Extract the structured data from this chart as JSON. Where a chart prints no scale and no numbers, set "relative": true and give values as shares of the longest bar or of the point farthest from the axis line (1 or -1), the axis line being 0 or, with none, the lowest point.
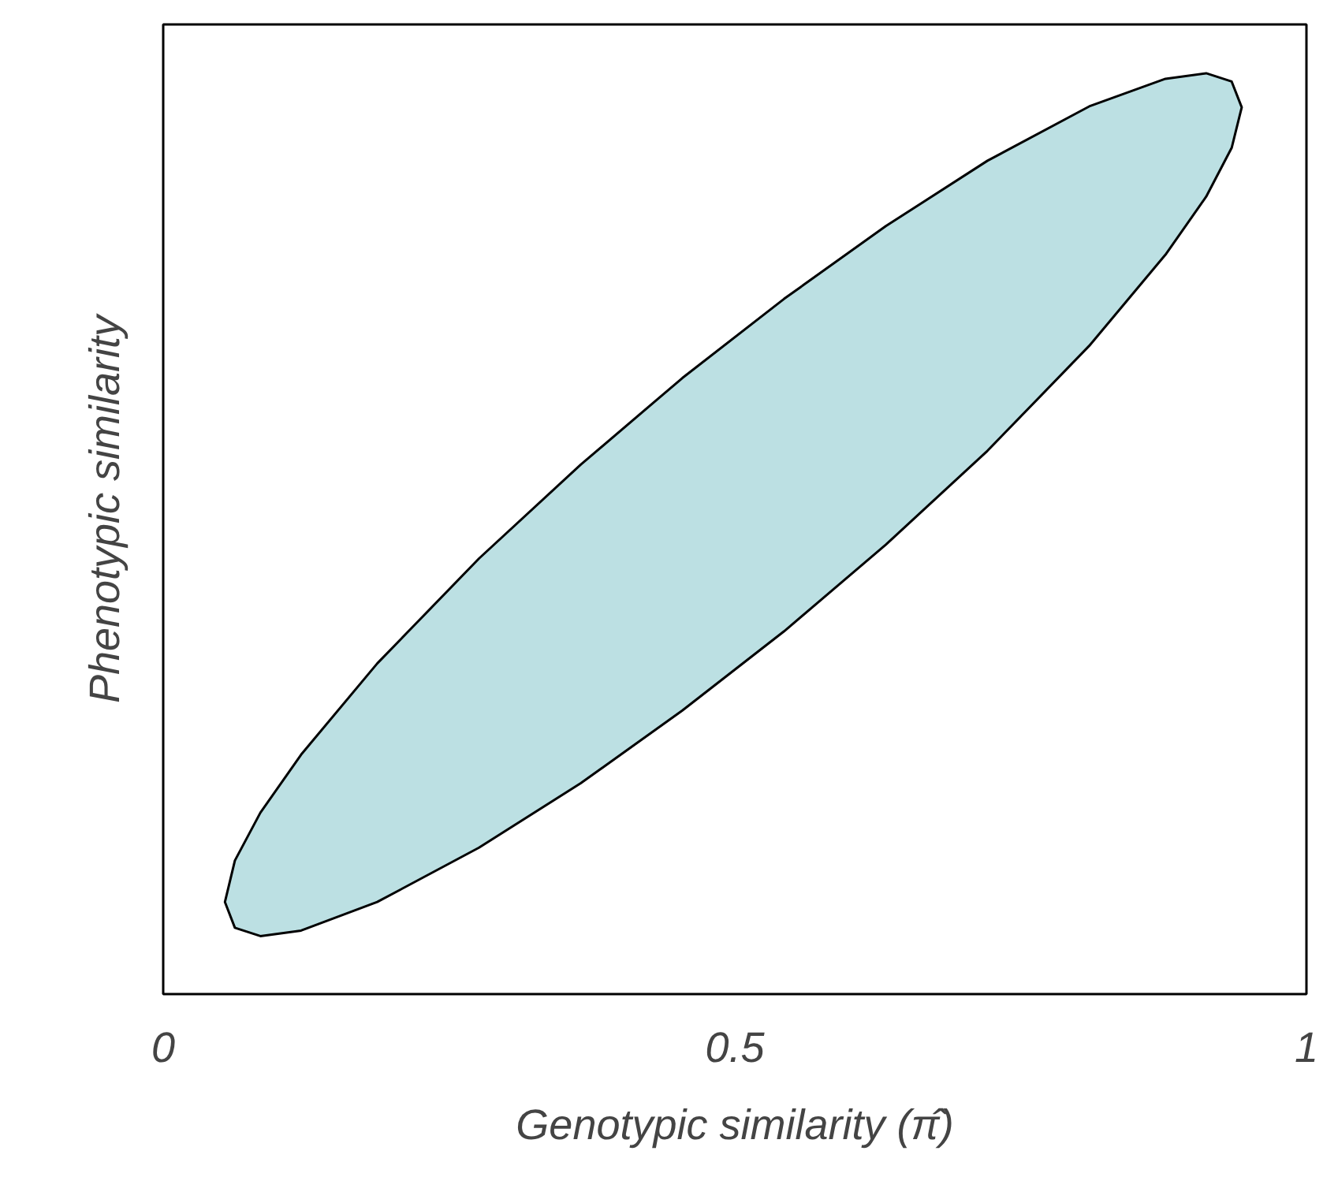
{
  "chart_data": {
    "type": "area",
    "relative": true,
    "xlabel": "Genotypic similarity (π̂)",
    "ylabel": "Phenotypic similarity",
    "xlim": [
      0,
      1
    ],
    "xticks": [
      {
        "value": 0,
        "label": "0"
      },
      {
        "value": 0.5,
        "label": "0.5"
      },
      {
        "value": 1,
        "label": "1"
      }
    ],
    "tick_labels": "x",
    "grid": false,
    "series": [
      {
        "color": "#bce0e3",
        "x": [
          0.054,
          0.0627,
          0.085,
          0.1206,
          0.1872,
          0.2762,
          0.3652,
          0.4541,
          0.5431,
          0.6321,
          0.721,
          0.81,
          0.8767,
          0.9123,
          0.9346,
          0.9434,
          0.9346,
          0.9123,
          0.8767,
          0.81,
          0.721,
          0.6321,
          0.5431,
          0.4541,
          0.3652,
          0.2762,
          0.1872,
          0.1206,
          0.085,
          0.0627
        ],
        "values": [
          0.1,
          0.072,
          0.063,
          0.069,
          0.1,
          0.159,
          0.229,
          0.308,
          0.394,
          0.488,
          0.59,
          0.704,
          0.803,
          0.866,
          0.919,
          0.963,
          0.991,
          1.0,
          0.994,
          0.964,
          0.905,
          0.834,
          0.755,
          0.669,
          0.575,
          0.473,
          0.359,
          0.26,
          0.197,
          0.145
        ]
      }
    ]
  }
}
